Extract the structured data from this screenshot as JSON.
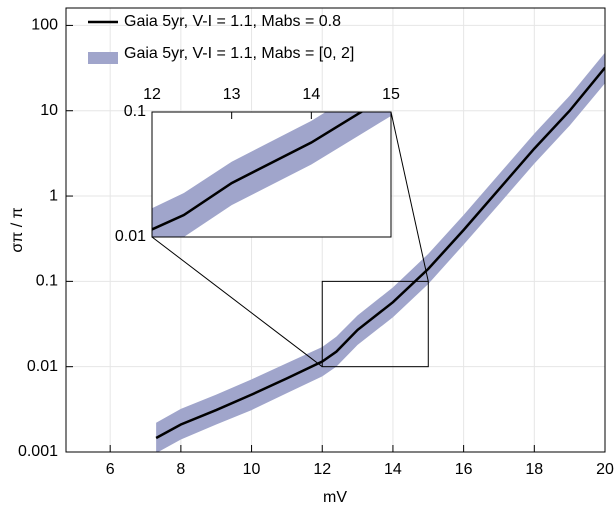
{
  "chart_data": {
    "type": "line",
    "xlabel": "mV",
    "ylabel": "σπ / π",
    "x": [
      7.3,
      8,
      9,
      10,
      11,
      12,
      12.4,
      13,
      14,
      15,
      16,
      17,
      18,
      19,
      20
    ],
    "series": [
      {
        "name": "Gaia 5yr, V-I = 1.1, Mabs = 0.8",
        "color": "#000000",
        "values": [
          0.00146,
          0.0021,
          0.0031,
          0.0047,
          0.0073,
          0.0115,
          0.015,
          0.027,
          0.057,
          0.14,
          0.4,
          1.2,
          3.6,
          10,
          32
        ]
      }
    ],
    "band": {
      "name": "Gaia 5yr, V-I = 1.1, Mabs = [0, 2]",
      "color": "#a0a5cb",
      "upper": [
        0.0022,
        0.0032,
        0.0047,
        0.0071,
        0.011,
        0.017,
        0.0225,
        0.04,
        0.085,
        0.21,
        0.6,
        1.8,
        5.4,
        15,
        48
      ],
      "lower": [
        0.00097,
        0.0014,
        0.0021,
        0.0031,
        0.0049,
        0.0077,
        0.01,
        0.018,
        0.038,
        0.093,
        0.27,
        0.8,
        2.4,
        6.7,
        21
      ]
    },
    "xlim": [
      4.75,
      20
    ],
    "ylim": [
      0.001,
      160
    ],
    "ylog": true,
    "grid": true,
    "xticks": [
      6,
      8,
      10,
      12,
      14,
      16,
      18,
      20
    ],
    "yticks": [
      0.001,
      0.01,
      0.1,
      1,
      10,
      100
    ],
    "legend": "upper left",
    "inset": {
      "xlim": [
        12,
        15
      ],
      "ylim": [
        0.01,
        0.1
      ],
      "xticks": [
        12,
        13,
        14,
        15
      ],
      "yticks": [
        0.01,
        0.1
      ]
    }
  }
}
